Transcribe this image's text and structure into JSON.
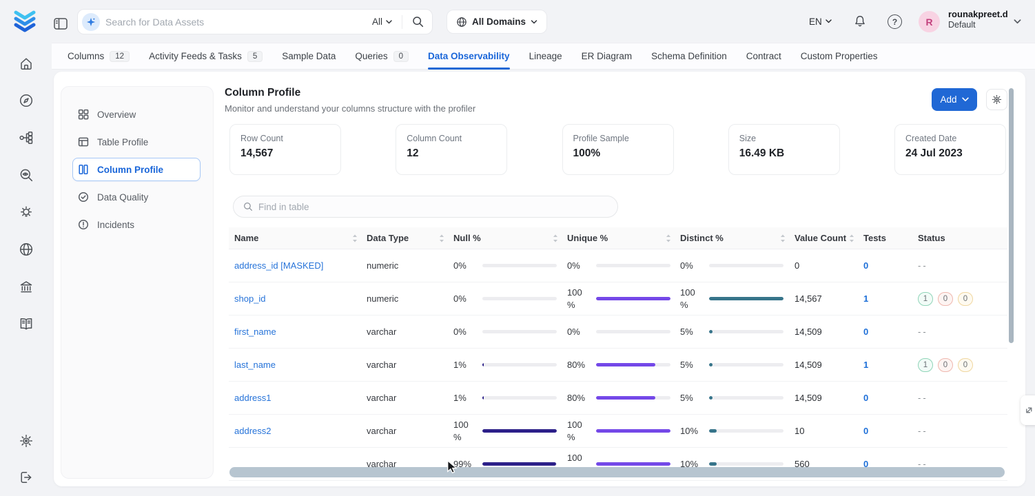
{
  "header": {
    "search_placeholder": "Search for Data Assets",
    "search_scope": "All",
    "domains": "All Domains",
    "language": "EN",
    "user_initial": "R",
    "user_name": "rounakpreet.d",
    "user_team": "Default"
  },
  "tabs": [
    {
      "label": "Columns",
      "count": "12"
    },
    {
      "label": "Activity Feeds & Tasks",
      "count": "5"
    },
    {
      "label": "Sample Data"
    },
    {
      "label": "Queries",
      "count": "0"
    },
    {
      "label": "Data Observability",
      "active": true
    },
    {
      "label": "Lineage"
    },
    {
      "label": "ER Diagram"
    },
    {
      "label": "Schema Definition"
    },
    {
      "label": "Contract"
    },
    {
      "label": "Custom Properties"
    }
  ],
  "rail": {
    "top": [
      "home",
      "explore",
      "lineage",
      "observability",
      "insights",
      "domains",
      "govern",
      "glossary"
    ],
    "bottom": [
      "settings",
      "logout"
    ]
  },
  "sidebar": {
    "items": [
      {
        "label": "Overview",
        "icon": "overview"
      },
      {
        "label": "Table Profile",
        "icon": "table-profile"
      },
      {
        "label": "Column Profile",
        "icon": "column-profile",
        "active": true
      },
      {
        "label": "Data Quality",
        "icon": "data-quality"
      },
      {
        "label": "Incidents",
        "icon": "incidents"
      }
    ]
  },
  "page": {
    "title": "Column Profile",
    "subtitle": "Monitor and understand your columns structure with the profiler",
    "add_button": "Add"
  },
  "stats": [
    {
      "label": "Row Count",
      "value": "14,567"
    },
    {
      "label": "Column Count",
      "value": "12"
    },
    {
      "label": "Profile Sample",
      "value": "100%"
    },
    {
      "label": "Size",
      "value": "16.49 KB"
    },
    {
      "label": "Created Date",
      "value": "24 Jul 2023"
    }
  ],
  "table": {
    "search_placeholder": "Find in table",
    "columns": [
      {
        "label": "Name",
        "sortable": true
      },
      {
        "label": "Data Type",
        "sortable": true
      },
      {
        "label": "Null %",
        "sortable": true
      },
      {
        "label": "Unique %",
        "sortable": true
      },
      {
        "label": "Distinct %",
        "sortable": true
      },
      {
        "label": "Value Count",
        "sortable": true
      },
      {
        "label": "Tests",
        "sortable": false
      },
      {
        "label": "Status",
        "sortable": false
      }
    ],
    "status_empty": "--",
    "rows": [
      {
        "name": "address_id [MASKED]",
        "type": "numeric",
        "null_text": "0%",
        "null_pct": 0,
        "unique_text": "0%",
        "unique_pct": 0,
        "distinct_text": "0%",
        "distinct_pct": 0,
        "value_count": "0",
        "tests": "0",
        "status": null
      },
      {
        "name": "shop_id",
        "type": "numeric",
        "null_text": "0%",
        "null_pct": 0,
        "unique_text": "100 %",
        "unique_pct": 100,
        "distinct_text": "100 %",
        "distinct_pct": 100,
        "value_count": "14,567",
        "tests": "1",
        "status": [
          "1",
          "0",
          "0"
        ]
      },
      {
        "name": "first_name",
        "type": "varchar",
        "null_text": "0%",
        "null_pct": 0,
        "unique_text": "0%",
        "unique_pct": 0,
        "distinct_text": "5%",
        "distinct_pct": 5,
        "value_count": "14,509",
        "tests": "0",
        "status": null
      },
      {
        "name": "last_name",
        "type": "varchar",
        "null_text": "1%",
        "null_pct": 2,
        "unique_text": "80%",
        "unique_pct": 80,
        "distinct_text": "5%",
        "distinct_pct": 5,
        "value_count": "14,509",
        "tests": "1",
        "status": [
          "1",
          "0",
          "0"
        ]
      },
      {
        "name": "address1",
        "type": "varchar",
        "null_text": "1%",
        "null_pct": 2,
        "unique_text": "80%",
        "unique_pct": 80,
        "distinct_text": "5%",
        "distinct_pct": 5,
        "value_count": "14,509",
        "tests": "0",
        "status": null
      },
      {
        "name": "address2",
        "type": "varchar",
        "null_text": "100 %",
        "null_pct": 100,
        "unique_text": "100 %",
        "unique_pct": 100,
        "distinct_text": "10%",
        "distinct_pct": 10,
        "value_count": "10",
        "tests": "0",
        "status": null
      },
      {
        "name": "",
        "type": "varchar",
        "null_text": "99%",
        "null_pct": 99,
        "unique_text": "100 %",
        "unique_pct": 100,
        "distinct_text": "10%",
        "distinct_pct": 10,
        "value_count": "560",
        "tests": "0",
        "status": null
      }
    ]
  },
  "colors": {
    "accent": "#2068d5",
    "link": "#2673d9",
    "bar-null": "#2c2089",
    "bar-unique": "#7448e8",
    "bar-distinct": "#36748a",
    "status-success": "#8fd4b8",
    "status-failed": "#efb7ae",
    "status-aborted": "#f0d7a0"
  }
}
